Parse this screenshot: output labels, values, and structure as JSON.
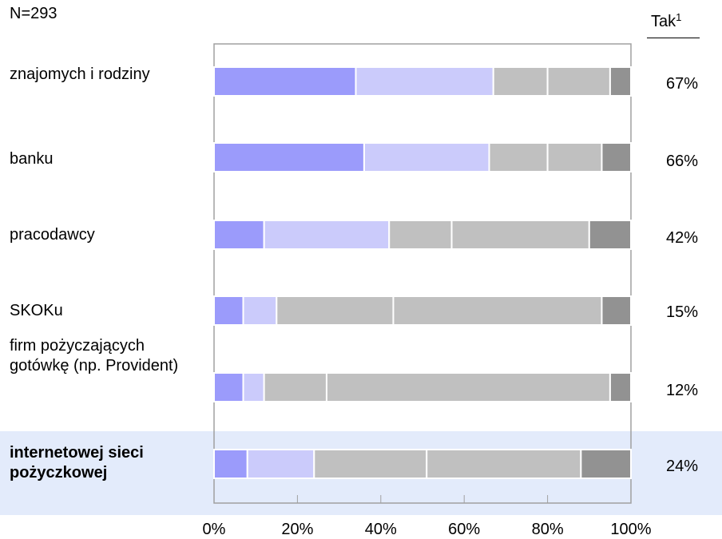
{
  "sample_label": "N=293",
  "tak_header": {
    "text": "Tak",
    "footnote": "1"
  },
  "colors": {
    "seg1": "#9b9bfb",
    "seg2": "#cbcbfb",
    "seg3": "#c0c0c0",
    "seg4": "#c0c0c0",
    "seg5": "#929292",
    "highlight": "#e3ebfb",
    "axis": "#a0a0a0"
  },
  "chart_data": {
    "type": "bar",
    "orientation": "horizontal",
    "stacked": true,
    "xlim": [
      0,
      100
    ],
    "x_ticks": [
      "0%",
      "20%",
      "40%",
      "60%",
      "80%",
      "100%"
    ],
    "categories": [
      "znajomych i rodziny",
      "banku",
      "pracodawcy",
      "SKOKu",
      "firm pożyczających gotówkę (np. Provident)",
      "internetowej sieci pożyczkowej"
    ],
    "highlighted_category": "internetowej sieci pożyczkowej",
    "segments": [
      [
        34,
        33,
        13,
        15,
        5
      ],
      [
        36,
        30,
        14,
        13,
        7
      ],
      [
        12,
        30,
        15,
        33,
        10
      ],
      [
        7,
        8,
        28,
        50,
        7
      ],
      [
        7,
        5,
        15,
        68,
        5
      ],
      [
        8,
        16,
        27,
        37,
        12
      ]
    ],
    "tak_values": [
      "67%",
      "66%",
      "42%",
      "15%",
      "12%",
      "24%"
    ]
  }
}
